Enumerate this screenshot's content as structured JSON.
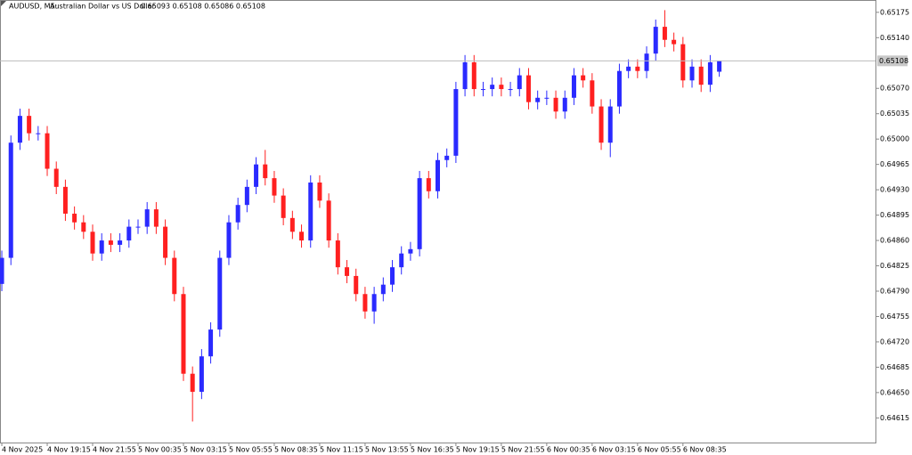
{
  "chart_data": {
    "type": "candlestick",
    "symbol": "AUDUSD, M5:",
    "description": "Australian Dollar vs US Dollar",
    "ohlc": "0.65093 0.65108 0.65086 0.65108",
    "up_color": "#2a2aff",
    "down_color": "#ff2020",
    "last_price": 0.65108,
    "open": [
      0.648,
      0.64836,
      0.64995,
      0.65032,
      0.65008,
      0.65008,
      0.64959,
      0.64934,
      0.64897,
      0.64885,
      0.64872,
      0.64842,
      0.6486,
      0.64854,
      0.6486,
      0.64879,
      0.64879,
      0.64903,
      0.64879,
      0.64836,
      0.64786,
      0.64676,
      0.64651,
      0.647,
      0.64737,
      0.64836,
      0.64885,
      0.64909,
      0.64934,
      0.64965,
      0.64946,
      0.64922,
      0.64891,
      0.64872,
      0.6486,
      0.6494,
      0.64915,
      0.6486,
      0.64823,
      0.64811,
      0.64786,
      0.64762,
      0.64786,
      0.64799,
      0.64823,
      0.64842,
      0.64848,
      0.64946,
      0.64928,
      0.64971,
      0.64977,
      0.65069,
      0.65106,
      0.65069,
      0.65069,
      0.65075,
      0.65069,
      0.65069,
      0.65088,
      0.65051,
      0.65057,
      0.65057,
      0.65038,
      0.65057,
      0.65088,
      0.65081,
      0.65045,
      0.64995,
      0.65045,
      0.65094,
      0.651,
      0.65094,
      0.65118,
      0.65155,
      0.65137,
      0.65131,
      0.65081,
      0.651,
      0.65075,
      0.65093
    ],
    "high": [
      0.64846,
      0.65005,
      0.65042,
      0.65042,
      0.65018,
      0.65018,
      0.64969,
      0.64944,
      0.64907,
      0.64895,
      0.64882,
      0.6487,
      0.6487,
      0.6487,
      0.64889,
      0.64889,
      0.64913,
      0.64913,
      0.64889,
      0.64846,
      0.64796,
      0.64686,
      0.6471,
      0.64747,
      0.64846,
      0.64895,
      0.64919,
      0.64944,
      0.64975,
      0.64985,
      0.64956,
      0.64932,
      0.64901,
      0.64882,
      0.6495,
      0.6495,
      0.64925,
      0.6487,
      0.64833,
      0.64821,
      0.64796,
      0.64796,
      0.64809,
      0.64833,
      0.64852,
      0.64858,
      0.64956,
      0.64956,
      0.64981,
      0.64987,
      0.65079,
      0.65116,
      0.65116,
      0.65079,
      0.65085,
      0.65085,
      0.65079,
      0.65098,
      0.65098,
      0.65067,
      0.65067,
      0.65067,
      0.65067,
      0.65098,
      0.65098,
      0.65091,
      0.65055,
      0.65055,
      0.65104,
      0.6511,
      0.6511,
      0.65128,
      0.65165,
      0.65178,
      0.65147,
      0.65141,
      0.6511,
      0.6511,
      0.65116,
      0.65108
    ],
    "low": [
      0.6479,
      0.64826,
      0.64985,
      0.64998,
      0.64998,
      0.64949,
      0.64924,
      0.64887,
      0.64875,
      0.64862,
      0.64832,
      0.64832,
      0.64844,
      0.64844,
      0.6485,
      0.64869,
      0.64869,
      0.64869,
      0.64826,
      0.64776,
      0.64666,
      0.6461,
      0.64641,
      0.6469,
      0.64727,
      0.64826,
      0.64875,
      0.64899,
      0.64924,
      0.64936,
      0.64912,
      0.64881,
      0.64862,
      0.6485,
      0.6485,
      0.64905,
      0.6485,
      0.64813,
      0.64801,
      0.64776,
      0.64752,
      0.64745,
      0.64776,
      0.64789,
      0.64813,
      0.64832,
      0.64838,
      0.64918,
      0.64918,
      0.64961,
      0.64967,
      0.65059,
      0.65059,
      0.65059,
      0.65059,
      0.65059,
      0.65059,
      0.65059,
      0.65041,
      0.65041,
      0.65047,
      0.65028,
      0.65028,
      0.65047,
      0.65071,
      0.65035,
      0.64985,
      0.64975,
      0.65035,
      0.65084,
      0.65084,
      0.65084,
      0.65108,
      0.65127,
      0.65121,
      0.65071,
      0.65071,
      0.65065,
      0.65065,
      0.65086
    ],
    "close": [
      0.64836,
      0.64995,
      0.65032,
      0.65008,
      0.65008,
      0.64959,
      0.64934,
      0.64897,
      0.64885,
      0.64872,
      0.64842,
      0.6486,
      0.64854,
      0.6486,
      0.64879,
      0.64879,
      0.64903,
      0.64879,
      0.64836,
      0.64786,
      0.64676,
      0.64651,
      0.647,
      0.64737,
      0.64836,
      0.64885,
      0.64909,
      0.64934,
      0.64965,
      0.64946,
      0.64922,
      0.64891,
      0.64872,
      0.6486,
      0.6494,
      0.64915,
      0.6486,
      0.64823,
      0.64811,
      0.64786,
      0.64762,
      0.64786,
      0.64799,
      0.64823,
      0.64842,
      0.64848,
      0.64946,
      0.64928,
      0.64971,
      0.64977,
      0.65069,
      0.65106,
      0.65069,
      0.65069,
      0.65075,
      0.65069,
      0.65069,
      0.65088,
      0.65051,
      0.65057,
      0.65057,
      0.65038,
      0.65057,
      0.65088,
      0.65081,
      0.65045,
      0.64995,
      0.65045,
      0.65094,
      0.651,
      0.65094,
      0.65118,
      0.65155,
      0.65137,
      0.65131,
      0.65081,
      0.651,
      0.65075,
      0.65106,
      0.65108
    ],
    "xlim": [
      -0.2,
      96.2
    ],
    "xticks": [
      {
        "value": 0,
        "label": "4 Nov 2025"
      },
      {
        "value": 5,
        "label": "4 Nov 19:15"
      },
      {
        "value": 10,
        "label": "4 Nov 21:55"
      },
      {
        "value": 15,
        "label": "5 Nov 00:35"
      },
      {
        "value": 20,
        "label": "5 Nov 03:15"
      },
      {
        "value": 25,
        "label": "5 Nov 05:55"
      },
      {
        "value": 30,
        "label": "5 Nov 08:35"
      },
      {
        "value": 35,
        "label": "5 Nov 11:15"
      },
      {
        "value": 40,
        "label": "5 Nov 13:55"
      },
      {
        "value": 45,
        "label": "5 Nov 16:35"
      },
      {
        "value": 50,
        "label": "5 Nov 19:15"
      },
      {
        "value": 55,
        "label": "5 Nov 21:55"
      },
      {
        "value": 60,
        "label": "6 Nov 00:35"
      },
      {
        "value": 65,
        "label": "6 Nov 03:15"
      },
      {
        "value": 70,
        "label": "6 Nov 05:55"
      },
      {
        "value": 75,
        "label": "6 Nov 08:35"
      }
    ],
    "ylim": [
      0.64581,
      0.65192
    ],
    "yticks": [
      {
        "value": 0.65175,
        "label": "0.65175"
      },
      {
        "value": 0.6514,
        "label": "0.65140"
      },
      {
        "value": 0.6507,
        "label": "0.65070"
      },
      {
        "value": 0.65035,
        "label": "0.65035"
      },
      {
        "value": 0.65,
        "label": "0.65000"
      },
      {
        "value": 0.64965,
        "label": "0.64965"
      },
      {
        "value": 0.6493,
        "label": "0.64930"
      },
      {
        "value": 0.64895,
        "label": "0.64895"
      },
      {
        "value": 0.6486,
        "label": "0.64860"
      },
      {
        "value": 0.64825,
        "label": "0.64825"
      },
      {
        "value": 0.6479,
        "label": "0.64790"
      },
      {
        "value": 0.64755,
        "label": "0.64755"
      },
      {
        "value": 0.6472,
        "label": "0.64720"
      },
      {
        "value": 0.64685,
        "label": "0.64685"
      },
      {
        "value": 0.6465,
        "label": "0.64650"
      },
      {
        "value": 0.64615,
        "label": "0.64615"
      }
    ],
    "grid": false
  }
}
